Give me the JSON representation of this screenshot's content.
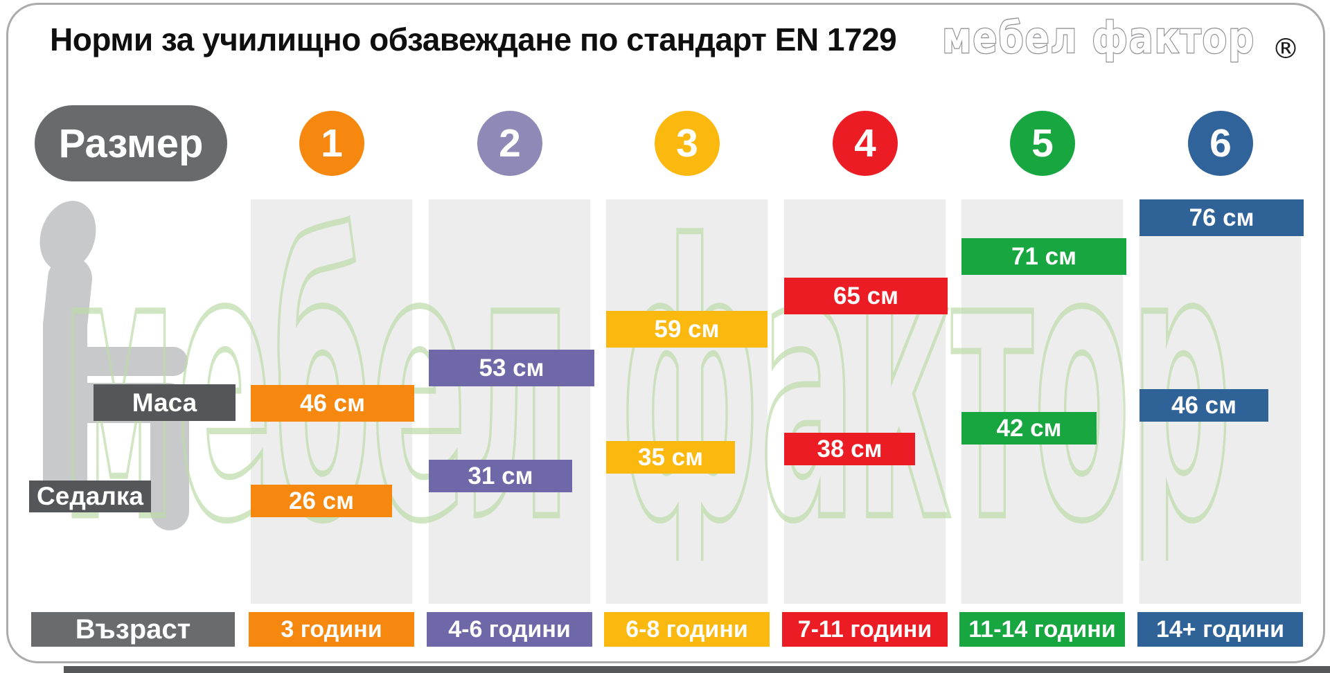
{
  "title": "Норми за училищно обзавеждане по стандарт EN 1729",
  "brand": {
    "name": "мебел фактор",
    "registered": "®"
  },
  "watermark_text": "мебел фактор",
  "row_headers": {
    "size": "Размер",
    "table": "Маса",
    "seat": "Седалка",
    "age": "Възраст"
  },
  "unit": "см",
  "sizes": [
    {
      "number": "1",
      "table_height": "46 см",
      "seat_height": "26 см",
      "age": "3 години",
      "color": "#F6870F",
      "circle_color": "#F6870F"
    },
    {
      "number": "2",
      "table_height": "53 см",
      "seat_height": "31 см",
      "age": "4-6 години",
      "color": "#6F68A8",
      "circle_color": "#8E89B7"
    },
    {
      "number": "3",
      "table_height": "59 см",
      "seat_height": "35 см",
      "age": "6-8 години",
      "color": "#FBB80F",
      "circle_color": "#FBB80F"
    },
    {
      "number": "4",
      "table_height": "65 см",
      "seat_height": "38 см",
      "age": "7-11 години",
      "color": "#EC1C24",
      "circle_color": "#EC1C24"
    },
    {
      "number": "5",
      "table_height": "71 см",
      "seat_height": "42 см",
      "age": "11-14 години",
      "color": "#17A63F",
      "circle_color": "#17A63F"
    },
    {
      "number": "6",
      "table_height": "76 см",
      "seat_height": "46 см",
      "age": "14+ години",
      "color": "#2F6296",
      "circle_color": "#31639B"
    }
  ],
  "ui_colors": {
    "header_gray": "#696A6C",
    "label_gray": "#55565A",
    "age_header_gray": "#6A6B6D",
    "column_background": "#EDEDED",
    "person_gray": "#C8C9CA",
    "watermark_green": "#BEDCAA",
    "logo_gray": "#8F9093"
  },
  "chart_data": {
    "type": "bar",
    "title": "Норми за училищно обзавеждане по стандарт EN 1729",
    "categories": [
      "1",
      "2",
      "3",
      "4",
      "5",
      "6"
    ],
    "series": [
      {
        "name": "Маса",
        "unit": "см",
        "values": [
          46,
          53,
          59,
          65,
          71,
          76
        ]
      },
      {
        "name": "Седалка",
        "unit": "см",
        "values": [
          26,
          31,
          35,
          38,
          42,
          46
        ]
      }
    ],
    "age_labels": [
      "3 години",
      "4-6 години",
      "6-8 години",
      "7-11 години",
      "11-14 години",
      "14+ години"
    ],
    "xlabel": "Размер",
    "ylabel": "см",
    "grid": false,
    "legend_position": "left"
  }
}
